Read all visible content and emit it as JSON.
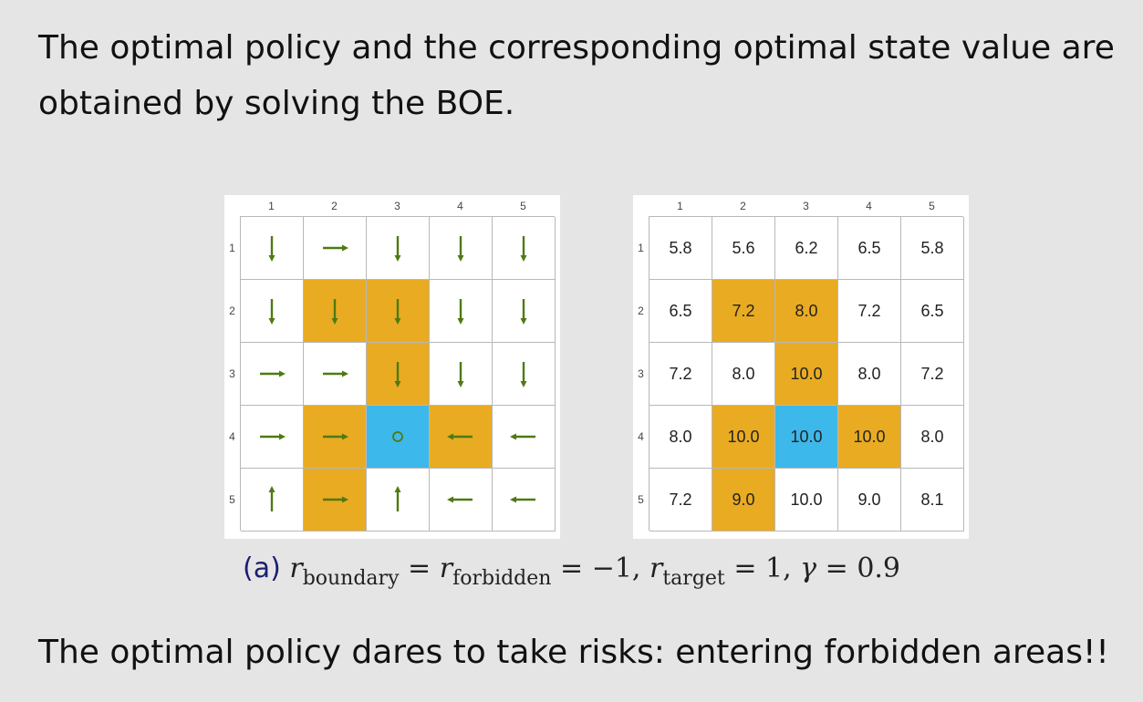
{
  "intro_text": "The optimal policy and the corresponding optimal state value are obtained by solving the BOE.",
  "grid": {
    "col_labels": [
      "1",
      "2",
      "3",
      "4",
      "5"
    ],
    "row_labels": [
      "1",
      "2",
      "3",
      "4",
      "5"
    ],
    "cell_types": [
      [
        "normal",
        "normal",
        "normal",
        "normal",
        "normal"
      ],
      [
        "normal",
        "forbidden",
        "forbidden",
        "normal",
        "normal"
      ],
      [
        "normal",
        "normal",
        "forbidden",
        "normal",
        "normal"
      ],
      [
        "normal",
        "forbidden",
        "target",
        "forbidden",
        "normal"
      ],
      [
        "normal",
        "forbidden",
        "normal",
        "normal",
        "normal"
      ]
    ],
    "policy": [
      [
        "down",
        "right",
        "down",
        "down",
        "down"
      ],
      [
        "down",
        "down",
        "down",
        "down",
        "down"
      ],
      [
        "right",
        "right",
        "down",
        "down",
        "down"
      ],
      [
        "right",
        "right",
        "stay",
        "left",
        "left"
      ],
      [
        "up",
        "right",
        "up",
        "left",
        "left"
      ]
    ],
    "values": [
      [
        "5.8",
        "5.6",
        "6.2",
        "6.5",
        "5.8"
      ],
      [
        "6.5",
        "7.2",
        "8.0",
        "7.2",
        "6.5"
      ],
      [
        "7.2",
        "8.0",
        "10.0",
        "8.0",
        "7.2"
      ],
      [
        "8.0",
        "10.0",
        "10.0",
        "10.0",
        "8.0"
      ],
      [
        "7.2",
        "9.0",
        "10.0",
        "9.0",
        "8.1"
      ]
    ]
  },
  "colors": {
    "forbidden": "#e9ab22",
    "target": "#3db8ea",
    "arrow": "#4e7a12",
    "caption_label": "#1b1f6e"
  },
  "caption": {
    "label": "(a)",
    "r": "r",
    "boundary_sub": "boundary",
    "eq": "=",
    "forbidden_sub": "forbidden",
    "forbidden_value": "= −1,",
    "target_sub": "target",
    "target_value": "= 1,",
    "gamma": "γ",
    "gamma_value": "= 0.9"
  },
  "conclusion_text": "The optimal policy dares to take risks: entering forbidden areas!!"
}
